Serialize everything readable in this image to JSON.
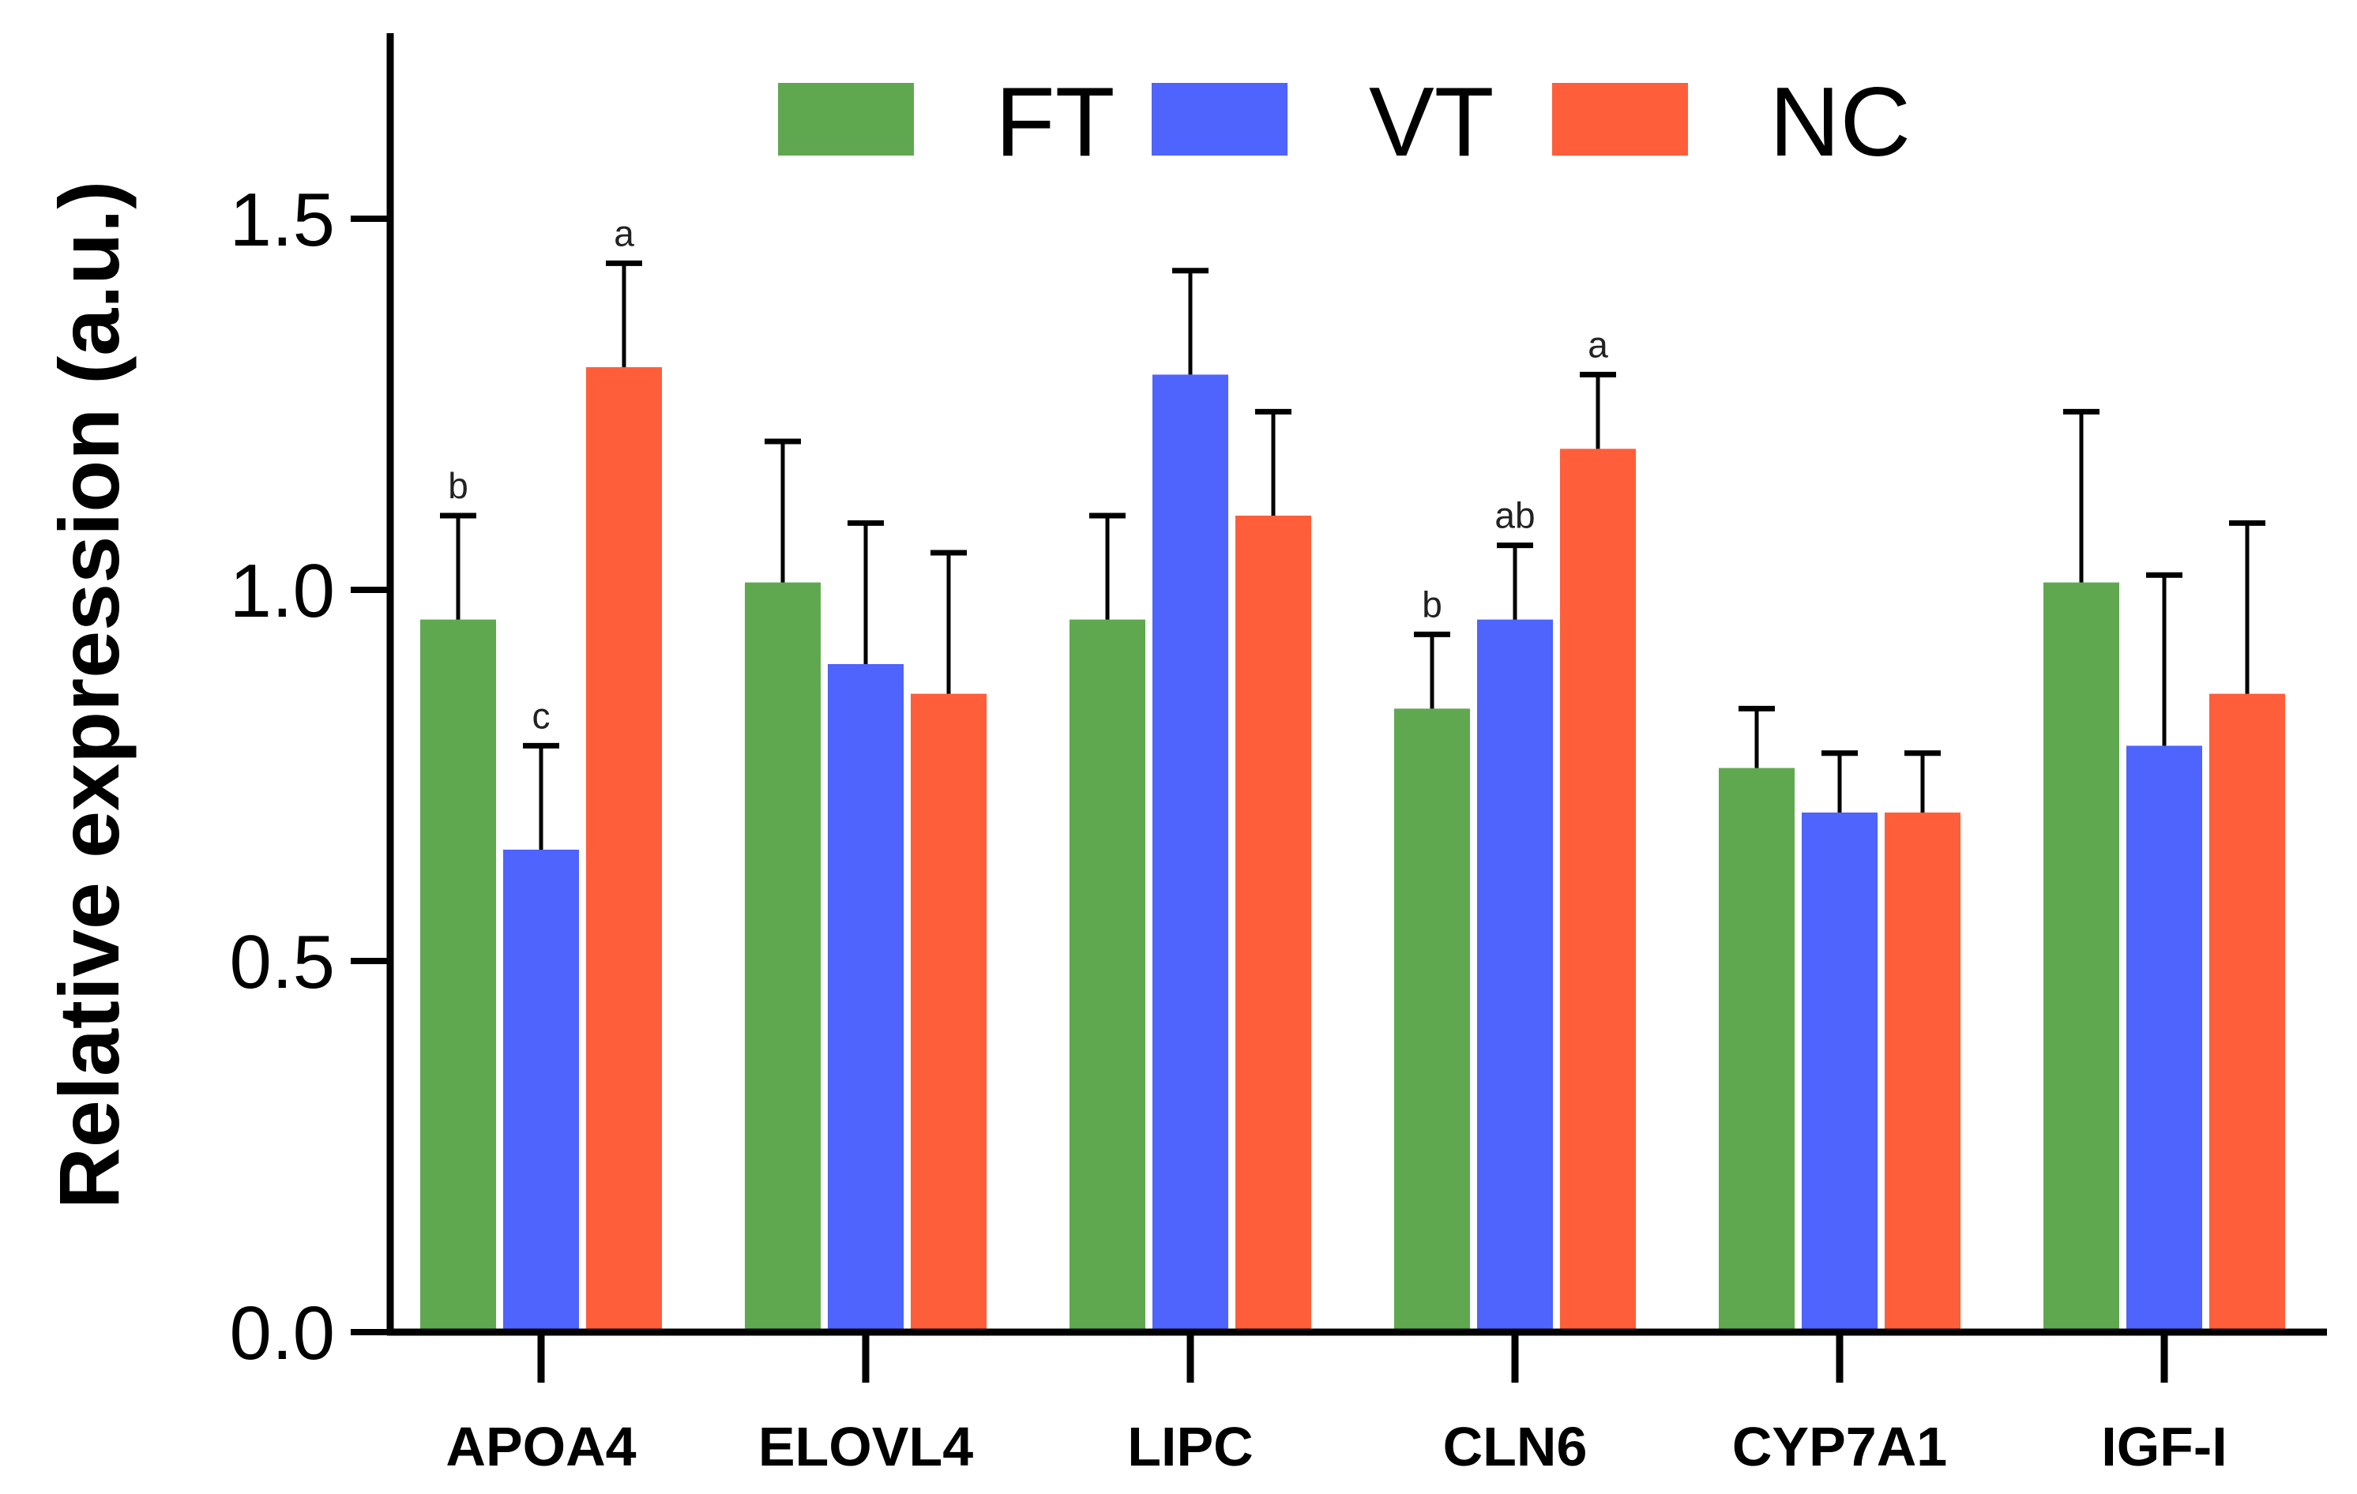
{
  "chart_data": {
    "type": "bar",
    "title": "",
    "xlabel": "",
    "ylabel": "Relative expression (a.u.)",
    "ylim": [
      0,
      1.75
    ],
    "yticks": [
      0.0,
      0.5,
      1.0,
      1.5
    ],
    "ytick_labels": [
      "0.0",
      "0.5",
      "1.0",
      "1.5"
    ],
    "categories": [
      "APOA4",
      "ELOVL4",
      "LIPC",
      "CLN6",
      "CYP7A1",
      "IGF-I"
    ],
    "legend_position": "top",
    "grid": false,
    "series": [
      {
        "name": "FT",
        "color": "#60A850",
        "values": [
          0.96,
          1.01,
          0.96,
          0.84,
          0.76,
          1.01
        ],
        "error_upper": [
          1.1,
          1.2,
          1.1,
          0.94,
          0.84,
          1.24
        ],
        "labels": [
          "b",
          "",
          "",
          "b",
          "",
          ""
        ]
      },
      {
        "name": "VT",
        "color": "#4F63FD",
        "values": [
          0.65,
          0.9,
          1.29,
          0.96,
          0.7,
          0.79
        ],
        "error_upper": [
          0.79,
          1.09,
          1.43,
          1.06,
          0.78,
          1.02
        ],
        "labels": [
          "c",
          "",
          "",
          "ab",
          "",
          ""
        ]
      },
      {
        "name": "NC",
        "color": "#FF5E3A",
        "values": [
          1.3,
          0.86,
          1.1,
          1.19,
          0.7,
          0.86
        ],
        "error_upper": [
          1.44,
          1.05,
          1.24,
          1.29,
          0.78,
          1.09
        ],
        "labels": [
          "a",
          "",
          "",
          "a",
          "",
          ""
        ]
      }
    ]
  }
}
